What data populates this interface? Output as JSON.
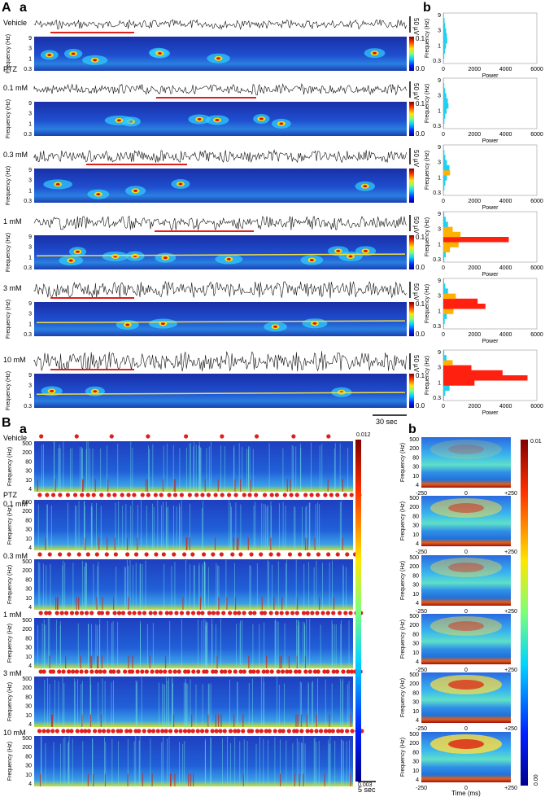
{
  "panel_labels": {
    "A": "A",
    "a": "a",
    "b": "b",
    "B": "B",
    "Ba": "a",
    "Bb": "b"
  },
  "colors": {
    "trace": "#111111",
    "bar": "#e0201b",
    "dot": "#e0201b",
    "spec_bg": "#1a3fb0",
    "spec_dark": "#0d2a8a",
    "axis": "#333333"
  },
  "section_A": {
    "group_label": "PTZ",
    "rows": [
      {
        "label": "Vehicle",
        "sub": "",
        "cbar_max": "0.1",
        "cbar_min": "0.0",
        "scale": "50 µV",
        "hist": [
          30,
          60,
          110,
          170,
          250,
          230,
          180,
          120,
          80,
          40
        ]
      },
      {
        "label": "0.1 mM",
        "sub": "PTZ",
        "cbar_max": "0.1",
        "cbar_min": "0.0",
        "scale": "",
        "hist": [
          40,
          70,
          120,
          210,
          330,
          290,
          190,
          120,
          60,
          30
        ]
      },
      {
        "label": "0.3 mM",
        "sub": "",
        "cbar_max": "",
        "cbar_min": "",
        "scale": "50 µV",
        "hist": [
          30,
          70,
          130,
          230,
          430,
          390,
          230,
          130,
          70,
          30
        ]
      },
      {
        "label": "1 mM",
        "sub": "",
        "cbar_max": "0.1",
        "cbar_min": "0.0",
        "scale": "50 µV",
        "hist": [
          60,
          160,
          420,
          980,
          4200,
          1100,
          600,
          300,
          150,
          60
        ]
      },
      {
        "label": "3 mM",
        "sub": "",
        "cbar_max": "0.1",
        "cbar_min": "0.0",
        "scale": "50 µV",
        "hist": [
          40,
          90,
          220,
          650,
          2700,
          2200,
          800,
          300,
          120,
          50
        ]
      },
      {
        "label": "10 mM",
        "sub": "",
        "cbar_max": "0.1",
        "cbar_min": "0.0",
        "scale": "50 µV",
        "hist": [
          50,
          120,
          400,
          2000,
          5400,
          3800,
          1800,
          600,
          200,
          60
        ]
      }
    ],
    "freq_ticks": [
      "9",
      "3",
      "1",
      "0.3"
    ],
    "freq_label": "Frequency (Hz)",
    "power_ticks": [
      "0",
      "2000",
      "4000",
      "6000"
    ],
    "power_label": "Power",
    "time_scale": "30 sec"
  },
  "section_B": {
    "group_label": "PTZ",
    "rows": [
      {
        "label": "Vehicle",
        "sub": "",
        "dots": 9
      },
      {
        "label": "0.1 mM",
        "sub": "PTZ",
        "dots": 48
      },
      {
        "label": "0.3 mM",
        "sub": "",
        "dots": 34
      },
      {
        "label": "1 mM",
        "sub": "",
        "dots": 62
      },
      {
        "label": "3 mM",
        "sub": "",
        "dots": 70
      },
      {
        "label": "10 mM",
        "sub": "",
        "dots": 72
      }
    ],
    "freq_ticks": [
      "500",
      "200",
      "80",
      "30",
      "10",
      "4"
    ],
    "freq_label": "Frequency (Hz)",
    "cbar_a_max": "0.012",
    "cbar_a_min": "0.003",
    "cbar_b_max": "0.01",
    "cbar_b_min": "0.00",
    "time_ticks": [
      "-250",
      "0",
      "+250"
    ],
    "time_label": "Time (ms)",
    "time_scale": "5 sec"
  }
}
